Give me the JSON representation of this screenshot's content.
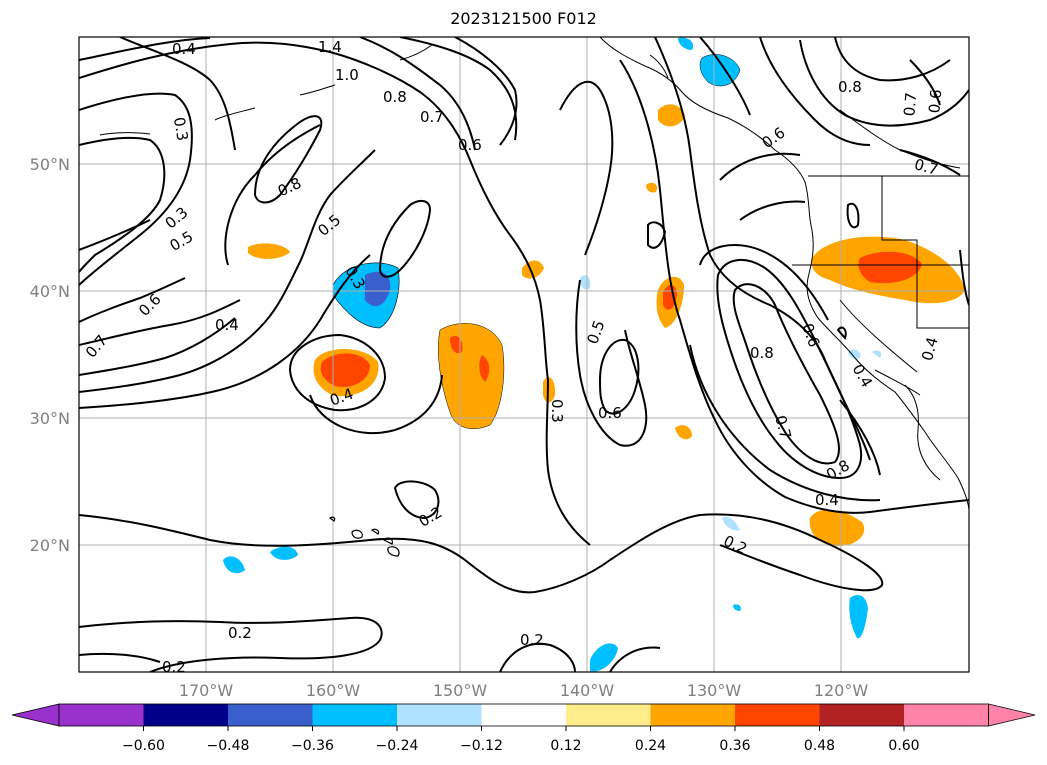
{
  "title": "2023121500 F012",
  "map": {
    "lat_labels": [
      "50°N",
      "40°N",
      "30°N",
      "20°N"
    ],
    "lon_labels": [
      "170°W",
      "160°W",
      "150°W",
      "140°W",
      "130°W",
      "120°W"
    ],
    "contour_labels": [
      "0.4",
      "1.4",
      "1.0",
      "0.8",
      "0.7",
      "0.6",
      "0.3",
      "0.8",
      "0.3",
      "0.5",
      "0.5",
      "0.6",
      "0.7",
      "0.3",
      "0.4",
      "0.4",
      "0.2",
      "0.3",
      "0.5",
      "0.6",
      "0.8",
      "0.6",
      "0.7",
      "0.8",
      "0.6",
      "0.4",
      "0.4",
      "0.2",
      "0.2",
      "0.2",
      "0.2",
      "0.8",
      "0.7",
      "0.6",
      "0.7",
      "0.4"
    ]
  },
  "colorbar": {
    "tick_labels": [
      "−0.60",
      "−0.48",
      "−0.36",
      "−0.24",
      "−0.12",
      "0.12",
      "0.24",
      "0.36",
      "0.48",
      "0.60"
    ],
    "colors": [
      "#9932cc",
      "#00008b",
      "#3a5fcd",
      "#00bfff",
      "#b0e2ff",
      "#ffffff",
      "#ffec8b",
      "#ffa500",
      "#ff4500",
      "#b22222",
      "#ff82ab"
    ]
  }
}
